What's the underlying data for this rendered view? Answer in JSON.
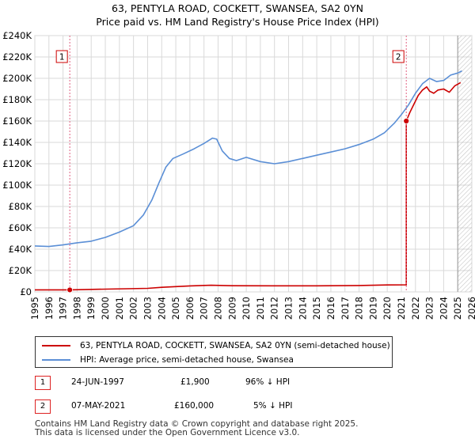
{
  "title_line1": "63, PENTYLA ROAD, COCKETT, SWANSEA, SA2 0YN",
  "title_line2": "Price paid vs. HM Land Registry's House Price Index (HPI)",
  "colors": {
    "price_paid": "#cc0000",
    "hpi": "#5b8fd6",
    "marker_line": "#e06080",
    "grid": "#d9d9d9",
    "future_hatch": "#b0b0b0"
  },
  "chart_data": {
    "type": "line",
    "title": "Price paid vs. HM Land Registry's House Price Index (HPI)",
    "xlabel": "",
    "ylabel": "",
    "xlim": [
      1995,
      2026
    ],
    "ylim": [
      0,
      240000
    ],
    "x_ticks": [
      "1995",
      "1996",
      "1997",
      "1998",
      "1999",
      "2000",
      "2001",
      "2002",
      "2003",
      "2004",
      "2005",
      "2006",
      "2007",
      "2008",
      "2009",
      "2010",
      "2011",
      "2012",
      "2013",
      "2014",
      "2015",
      "2016",
      "2017",
      "2018",
      "2019",
      "2020",
      "2021",
      "2022",
      "2023",
      "2024",
      "2025",
      "2026"
    ],
    "y_ticks": [
      "£0",
      "£20K",
      "£40K",
      "£60K",
      "£80K",
      "£100K",
      "£120K",
      "£140K",
      "£160K",
      "£180K",
      "£200K",
      "£220K",
      "£240K"
    ],
    "series": [
      {
        "name": "63, PENTYLA ROAD, COCKETT, SWANSEA, SA2 0YN (semi-detached house)",
        "color": "#cc0000",
        "x": [
          1995.0,
          1997.48,
          1997.48,
          2000,
          2003,
          2004,
          2006,
          2007.5,
          2009,
          2012,
          2015,
          2018,
          2020,
          2021.35,
          2021.35,
          2021.6,
          2021.9,
          2022.2,
          2022.5,
          2022.8,
          2023.0,
          2023.3,
          2023.6,
          2024.0,
          2024.4,
          2024.8,
          2025.2
        ],
        "y": [
          1900,
          1900,
          1900,
          2600,
          3300,
          4300,
          5600,
          6200,
          5800,
          5700,
          5700,
          6000,
          6500,
          6600,
          160000,
          168000,
          176000,
          184000,
          189000,
          192000,
          188000,
          186000,
          189000,
          190000,
          187000,
          193000,
          196000
        ]
      },
      {
        "name": "HPI: Average price, semi-detached house, Swansea",
        "color": "#5b8fd6",
        "x": [
          1995.0,
          1996.0,
          1997.0,
          1998.0,
          1999.0,
          2000.0,
          2001.0,
          2002.0,
          2002.7,
          2003.3,
          2003.8,
          2004.3,
          2004.8,
          2005.5,
          2006.3,
          2007.0,
          2007.6,
          2007.9,
          2008.3,
          2008.8,
          2009.3,
          2010.0,
          2011.0,
          2012.0,
          2013.0,
          2014.0,
          2015.0,
          2016.0,
          2017.0,
          2018.0,
          2019.0,
          2019.8,
          2020.5,
          2021.0,
          2021.5,
          2022.0,
          2022.5,
          2023.0,
          2023.5,
          2024.0,
          2024.5,
          2025.0,
          2025.3
        ],
        "y": [
          43000,
          42500,
          44000,
          46000,
          47500,
          51000,
          56000,
          62000,
          72000,
          86000,
          102000,
          117000,
          125000,
          129000,
          134000,
          139000,
          144000,
          143000,
          132000,
          125000,
          123000,
          126000,
          122000,
          120000,
          122000,
          125000,
          128000,
          131000,
          134000,
          138000,
          143000,
          149000,
          158000,
          166000,
          175000,
          186000,
          195000,
          200000,
          197000,
          198000,
          203000,
          205000,
          207000
        ]
      }
    ],
    "markers": [
      {
        "label": "1",
        "x": 1997.48,
        "y": 1900
      },
      {
        "label": "2",
        "x": 2021.35,
        "y": 160000
      }
    ],
    "projection_start": 2025.0
  },
  "legend": {
    "price_paid": "63, PENTYLA ROAD, COCKETT, SWANSEA, SA2 0YN (semi-detached house)",
    "hpi": "HPI: Average price, semi-detached house, Swansea"
  },
  "sales": [
    {
      "num": "1",
      "date": "24-JUN-1997",
      "price": "£1,900",
      "hpi_diff": "96% ↓ HPI"
    },
    {
      "num": "2",
      "date": "07-MAY-2021",
      "price": "£160,000",
      "hpi_diff": "5% ↓ HPI"
    }
  ],
  "footer_line1": "Contains HM Land Registry data © Crown copyright and database right 2025.",
  "footer_line2": "This data is licensed under the Open Government Licence v3.0."
}
